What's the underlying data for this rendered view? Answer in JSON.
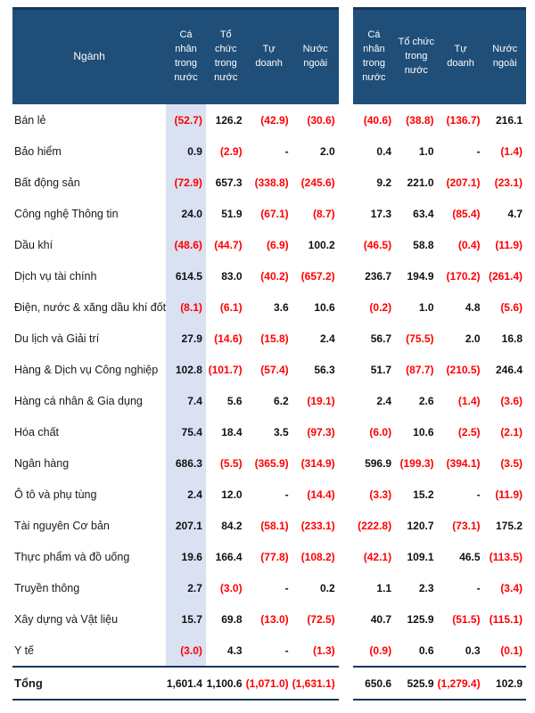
{
  "colors": {
    "header_bg": "#1F4E79",
    "negative_value": "#FF0000",
    "shaded_column_bg": "#D9E1F2",
    "border": "#16365C"
  },
  "chart_data": {
    "type": "table",
    "sector_header": "Ngành",
    "group_columns": [
      "Cá nhân trong nước",
      "Tổ chức trong nước",
      "Tự doanh",
      "Nước ngoài"
    ],
    "note": "Two side-by-side tables of net flows by investor type per sector; parenthesized values are negative (red).",
    "rows": [
      {
        "sector": "Bán lẻ",
        "left": [
          "(52.7)",
          "126.2",
          "(42.9)",
          "(30.6)"
        ],
        "right": [
          "(40.6)",
          "(38.8)",
          "(136.7)",
          "216.1"
        ]
      },
      {
        "sector": "Bảo hiểm",
        "left": [
          "0.9",
          "(2.9)",
          "-",
          "2.0"
        ],
        "right": [
          "0.4",
          "1.0",
          "-",
          "(1.4)"
        ]
      },
      {
        "sector": "Bất động sản",
        "left": [
          "(72.9)",
          "657.3",
          "(338.8)",
          "(245.6)"
        ],
        "right": [
          "9.2",
          "221.0",
          "(207.1)",
          "(23.1)"
        ]
      },
      {
        "sector": "Công nghệ Thông tin",
        "left": [
          "24.0",
          "51.9",
          "(67.1)",
          "(8.7)"
        ],
        "right": [
          "17.3",
          "63.4",
          "(85.4)",
          "4.7"
        ]
      },
      {
        "sector": "Dầu khí",
        "left": [
          "(48.6)",
          "(44.7)",
          "(6.9)",
          "100.2"
        ],
        "right": [
          "(46.5)",
          "58.8",
          "(0.4)",
          "(11.9)"
        ]
      },
      {
        "sector": "Dịch vụ tài chính",
        "left": [
          "614.5",
          "83.0",
          "(40.2)",
          "(657.2)"
        ],
        "right": [
          "236.7",
          "194.9",
          "(170.2)",
          "(261.4)"
        ]
      },
      {
        "sector": "Điện, nước & xăng dầu khí đốt",
        "left": [
          "(8.1)",
          "(6.1)",
          "3.6",
          "10.6"
        ],
        "right": [
          "(0.2)",
          "1.0",
          "4.8",
          "(5.6)"
        ]
      },
      {
        "sector": "Du lịch và Giải trí",
        "left": [
          "27.9",
          "(14.6)",
          "(15.8)",
          "2.4"
        ],
        "right": [
          "56.7",
          "(75.5)",
          "2.0",
          "16.8"
        ]
      },
      {
        "sector": "Hàng & Dịch vụ Công nghiệp",
        "left": [
          "102.8",
          "(101.7)",
          "(57.4)",
          "56.3"
        ],
        "right": [
          "51.7",
          "(87.7)",
          "(210.5)",
          "246.4"
        ]
      },
      {
        "sector": "Hàng cá nhân & Gia dụng",
        "left": [
          "7.4",
          "5.6",
          "6.2",
          "(19.1)"
        ],
        "right": [
          "2.4",
          "2.6",
          "(1.4)",
          "(3.6)"
        ]
      },
      {
        "sector": "Hóa chất",
        "left": [
          "75.4",
          "18.4",
          "3.5",
          "(97.3)"
        ],
        "right": [
          "(6.0)",
          "10.6",
          "(2.5)",
          "(2.1)"
        ]
      },
      {
        "sector": "Ngân hàng",
        "left": [
          "686.3",
          "(5.5)",
          "(365.9)",
          "(314.9)"
        ],
        "right": [
          "596.9",
          "(199.3)",
          "(394.1)",
          "(3.5)"
        ]
      },
      {
        "sector": "Ô tô và phụ tùng",
        "left": [
          "2.4",
          "12.0",
          "-",
          "(14.4)"
        ],
        "right": [
          "(3.3)",
          "15.2",
          "-",
          "(11.9)"
        ]
      },
      {
        "sector": "Tài nguyên Cơ bản",
        "left": [
          "207.1",
          "84.2",
          "(58.1)",
          "(233.1)"
        ],
        "right": [
          "(222.8)",
          "120.7",
          "(73.1)",
          "175.2"
        ]
      },
      {
        "sector": "Thực phẩm và đồ uống",
        "left": [
          "19.6",
          "166.4",
          "(77.8)",
          "(108.2)"
        ],
        "right": [
          "(42.1)",
          "109.1",
          "46.5",
          "(113.5)"
        ]
      },
      {
        "sector": "Truyền thông",
        "left": [
          "2.7",
          "(3.0)",
          "-",
          "0.2"
        ],
        "right": [
          "1.1",
          "2.3",
          "-",
          "(3.4)"
        ]
      },
      {
        "sector": "Xây dựng và Vật liệu",
        "left": [
          "15.7",
          "69.8",
          "(13.0)",
          "(72.5)"
        ],
        "right": [
          "40.7",
          "125.9",
          "(51.5)",
          "(115.1)"
        ]
      },
      {
        "sector": "Y tế",
        "left": [
          "(3.0)",
          "4.3",
          "-",
          "(1.3)"
        ],
        "right": [
          "(0.9)",
          "0.6",
          "0.3",
          "(0.1)"
        ]
      }
    ],
    "total": {
      "label": "Tổng",
      "left": [
        "1,601.4",
        "1,100.6",
        "(1,071.0)",
        "(1,631.1)"
      ],
      "right": [
        "650.6",
        "525.9",
        "(1,279.4)",
        "102.9"
      ]
    }
  }
}
